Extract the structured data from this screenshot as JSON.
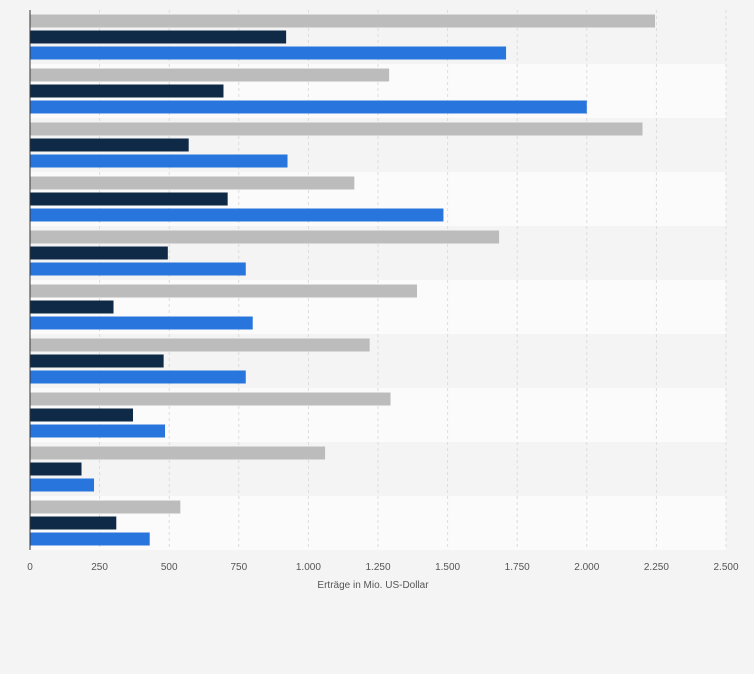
{
  "chart_data": {
    "type": "bar",
    "orientation": "horizontal",
    "categories": [
      "",
      "",
      "",
      "",
      "",
      "",
      "",
      "",
      "",
      ""
    ],
    "series": [
      {
        "values": [
          2245,
          1290,
          2200,
          1165,
          1685,
          1390,
          1220,
          1295,
          1060,
          540
        ],
        "color": "#bcbcbc"
      },
      {
        "values": [
          920,
          695,
          570,
          710,
          495,
          300,
          480,
          370,
          185,
          310
        ],
        "color": "#0f2a47"
      },
      {
        "values": [
          1710,
          2000,
          925,
          1485,
          775,
          800,
          775,
          485,
          230,
          430
        ],
        "color": "#2876dd"
      }
    ],
    "xlim": [
      0,
      2500
    ],
    "xticks": [
      0,
      250,
      500,
      750,
      1000,
      1250,
      1500,
      1750,
      2000,
      2250,
      2500
    ],
    "xtick_labels": [
      "0",
      "250",
      "500",
      "750",
      "1.000",
      "1.250",
      "1.500",
      "1.750",
      "2.000",
      "2.250",
      "2.500"
    ],
    "xlabel": "Erträge in Mio. US-Dollar",
    "ylabel": "",
    "title": "",
    "grid": true,
    "legend": "none"
  }
}
